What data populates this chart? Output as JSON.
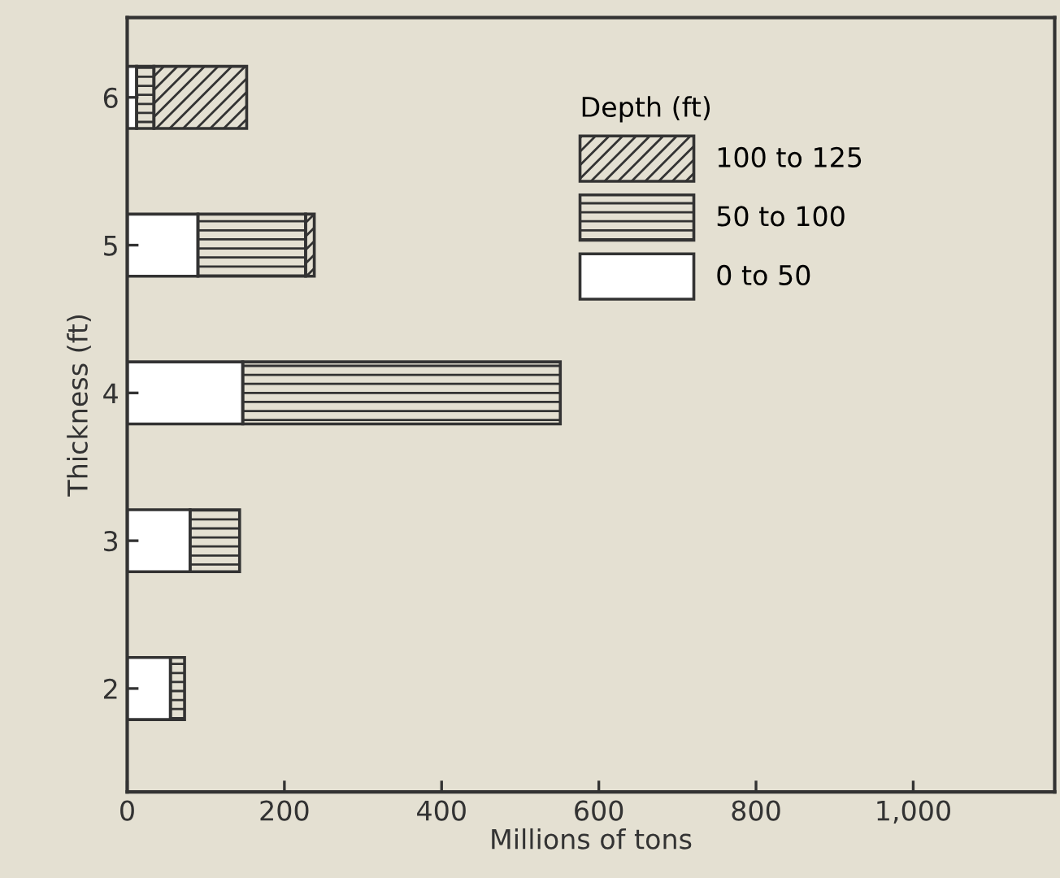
{
  "chart_data": {
    "type": "bar",
    "orientation": "horizontal",
    "stacked": true,
    "categories": [
      "6",
      "5",
      "4",
      "3",
      "2"
    ],
    "series": [
      {
        "name": "0 to 50",
        "color": "#ffffff",
        "values": [
          12,
          90,
          147,
          80,
          55
        ]
      },
      {
        "name": "50 to 100",
        "color": "#333333",
        "values": [
          22,
          137,
          404,
          63,
          18
        ]
      },
      {
        "name": "100 to 125",
        "color": "#333333",
        "values": [
          118,
          11,
          null,
          null,
          null
        ]
      }
    ],
    "xlabel": "Millions of tons",
    "ylabel": "Thickness (ft)",
    "legend_title": "Depth (ft)",
    "legend": "top right",
    "xlim": [
      0,
      1180
    ],
    "xticks": [
      0,
      200,
      400,
      600,
      800,
      {
        "value": 1000,
        "label": "1,000"
      }
    ],
    "grid": false
  }
}
